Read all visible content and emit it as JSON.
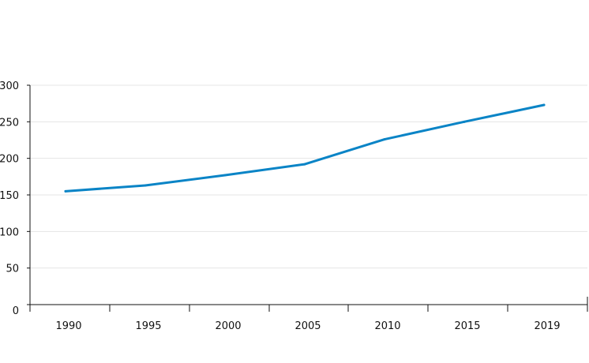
{
  "chart_data": {
    "type": "line",
    "title": "",
    "xlabel": "",
    "ylabel": "",
    "x": [
      1990,
      1995,
      2000,
      2005,
      2010,
      2015,
      2019
    ],
    "x_tick_labels": [
      "1990",
      "1995",
      "2000",
      "2005",
      "2010",
      "2015",
      "2019"
    ],
    "y_ticks": [
      0,
      50,
      100,
      150,
      200,
      250,
      300
    ],
    "y_tick_labels": [
      "0",
      "50",
      "100",
      "150",
      "200",
      "250",
      "300"
    ],
    "ylim": [
      0,
      300
    ],
    "grid": "horizontal",
    "legend": "none",
    "series": [
      {
        "values": [
          155,
          163,
          177,
          192,
          226,
          250,
          273
        ],
        "color": "#0a84c6"
      }
    ]
  }
}
